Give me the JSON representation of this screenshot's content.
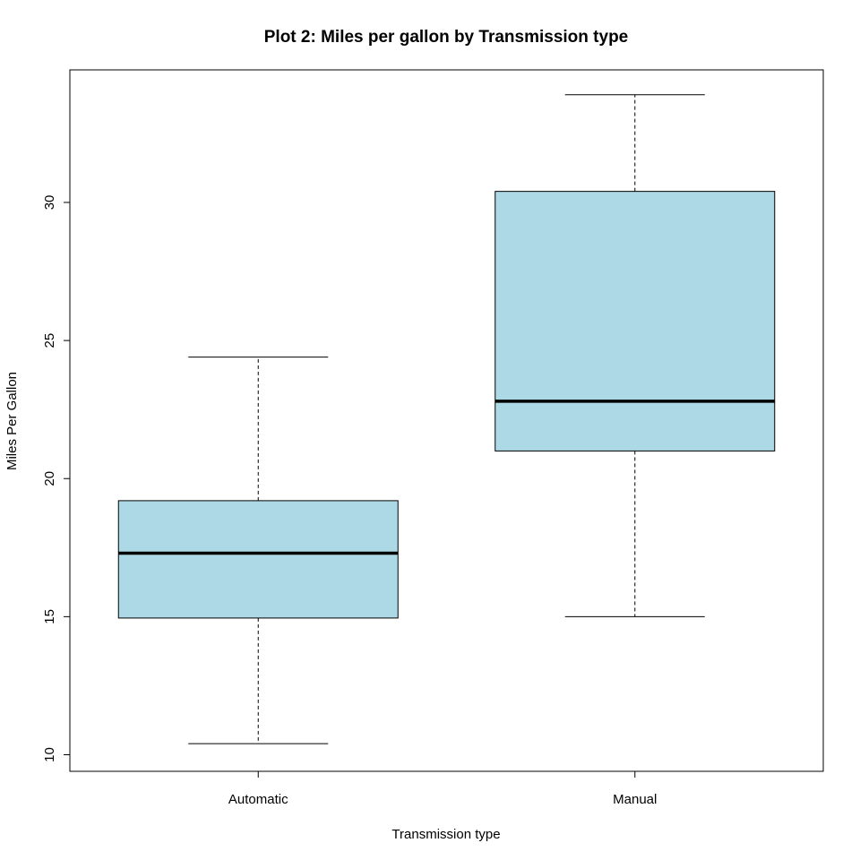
{
  "chart_data": {
    "type": "boxplot",
    "title": "Plot 2: Miles per gallon by Transmission type",
    "xlabel": "Transmission type",
    "ylabel": "Miles Per Gallon",
    "categories": [
      "Automatic",
      "Manual"
    ],
    "ylim": [
      9.4,
      34.8
    ],
    "yticks": [
      10,
      15,
      20,
      25,
      30
    ],
    "ytick_labels": [
      "10",
      "15",
      "20",
      "25",
      "30"
    ],
    "box_fill": "#add8e6",
    "boxes": [
      {
        "category": "Automatic",
        "whisker_low": 10.4,
        "q1": 14.95,
        "median": 17.3,
        "q3": 19.2,
        "whisker_high": 24.4
      },
      {
        "category": "Manual",
        "whisker_low": 15.0,
        "q1": 21.0,
        "median": 22.8,
        "q3": 30.4,
        "whisker_high": 33.9
      }
    ],
    "grid": false,
    "legend": "none"
  }
}
